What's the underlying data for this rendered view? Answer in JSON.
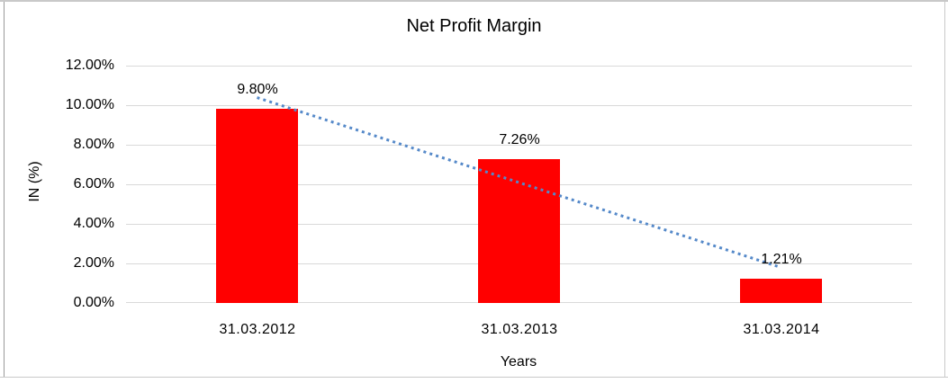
{
  "frame": {
    "border_color_light": "#c9c9c9",
    "border_color_medium": "#9a9a9a"
  },
  "chart_data": {
    "type": "bar",
    "title": "Net Profit Margin",
    "xlabel": "Years",
    "ylabel": "IN (%)",
    "categories": [
      "31.03.2012",
      "31.03.2013",
      "31.03.2014"
    ],
    "values": [
      9.8,
      7.26,
      1.21
    ],
    "data_labels": [
      "9.80%",
      "7.26%",
      "1.21%"
    ],
    "y_ticks": [
      "0.00%",
      "2.00%",
      "4.00%",
      "6.00%",
      "8.00%",
      "10.00%",
      "12.00%"
    ],
    "ylim": [
      0,
      12
    ],
    "grid": true,
    "legend": false,
    "trendline": {
      "type": "linear",
      "style": "dotted",
      "color": "#5589C9"
    },
    "colors": {
      "bar": "#FF0000",
      "gridline": "#D9D9D9",
      "text": "#000000",
      "background": "#FFFFFF"
    }
  }
}
